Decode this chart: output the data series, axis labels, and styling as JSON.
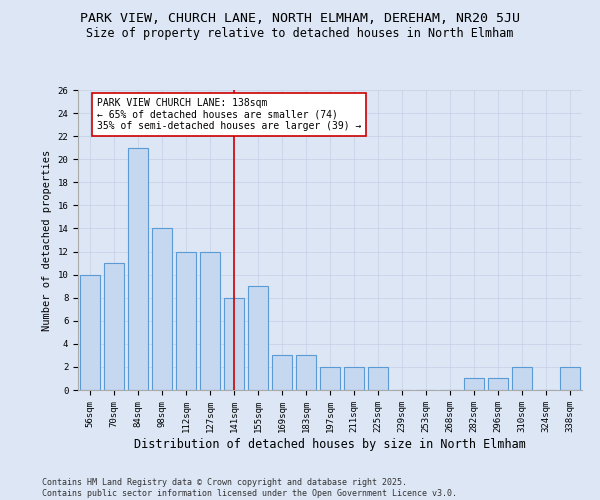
{
  "title_line1": "PARK VIEW, CHURCH LANE, NORTH ELMHAM, DEREHAM, NR20 5JU",
  "title_line2": "Size of property relative to detached houses in North Elmham",
  "xlabel": "Distribution of detached houses by size in North Elmham",
  "ylabel": "Number of detached properties",
  "categories": [
    "56sqm",
    "70sqm",
    "84sqm",
    "98sqm",
    "112sqm",
    "127sqm",
    "141sqm",
    "155sqm",
    "169sqm",
    "183sqm",
    "197sqm",
    "211sqm",
    "225sqm",
    "239sqm",
    "253sqm",
    "268sqm",
    "282sqm",
    "296sqm",
    "310sqm",
    "324sqm",
    "338sqm"
  ],
  "values": [
    10,
    11,
    21,
    14,
    12,
    12,
    8,
    9,
    3,
    3,
    2,
    2,
    2,
    0,
    0,
    0,
    1,
    1,
    2,
    0,
    2
  ],
  "bar_color": "#c5d8f0",
  "bar_edge_color": "#5b9bd5",
  "grid_color": "#c8d4e8",
  "background_color": "#dce6f5",
  "vline_x": 6.0,
  "vline_color": "#cc0000",
  "annotation_text": "PARK VIEW CHURCH LANE: 138sqm\n← 65% of detached houses are smaller (74)\n35% of semi-detached houses are larger (39) →",
  "ylim": [
    0,
    26
  ],
  "yticks": [
    0,
    2,
    4,
    6,
    8,
    10,
    12,
    14,
    16,
    18,
    20,
    22,
    24,
    26
  ],
  "footer_line1": "Contains HM Land Registry data © Crown copyright and database right 2025.",
  "footer_line2": "Contains public sector information licensed under the Open Government Licence v3.0.",
  "title_fontsize": 9.5,
  "subtitle_fontsize": 8.5,
  "xlabel_fontsize": 8.5,
  "ylabel_fontsize": 7.5,
  "tick_fontsize": 6.5,
  "annotation_fontsize": 7,
  "footer_fontsize": 6
}
